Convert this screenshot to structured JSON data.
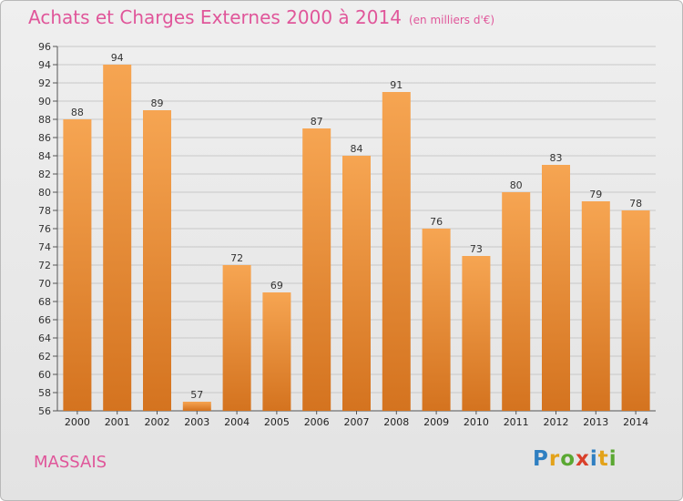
{
  "header": {
    "title": "Achats et Charges Externes 2000 à 2014",
    "subtitle": "(en milliers d'€)"
  },
  "footer": {
    "commune": "MASSAIS",
    "brand": "Proxiti",
    "brand_letters": [
      {
        "ch": "P",
        "color": "#2f7fc1"
      },
      {
        "ch": "r",
        "color": "#e3a21a"
      },
      {
        "ch": "o",
        "color": "#5aa832"
      },
      {
        "ch": "x",
        "color": "#d9402b"
      },
      {
        "ch": "i",
        "color": "#2f7fc1"
      },
      {
        "ch": "t",
        "color": "#e3a21a"
      },
      {
        "ch": "i",
        "color": "#5aa832"
      }
    ]
  },
  "colors": {
    "bar_light": "#f6a552",
    "bar_dark": "#d4731f",
    "title": "#e0569a",
    "grid": "#c8c8c8"
  },
  "chart_data": {
    "type": "bar",
    "title": "Achats et Charges Externes 2000 à 2014",
    "subtitle": "(en milliers d'€)",
    "categories": [
      "2000",
      "2001",
      "2002",
      "2003",
      "2004",
      "2005",
      "2006",
      "2007",
      "2008",
      "2009",
      "2010",
      "2011",
      "2012",
      "2013",
      "2014"
    ],
    "values": [
      88,
      94,
      89,
      57,
      72,
      69,
      87,
      84,
      91,
      76,
      73,
      80,
      83,
      79,
      78
    ],
    "ylim": [
      56,
      96
    ],
    "ytick_step": 2,
    "grid": true,
    "xlabel": "",
    "ylabel": ""
  }
}
